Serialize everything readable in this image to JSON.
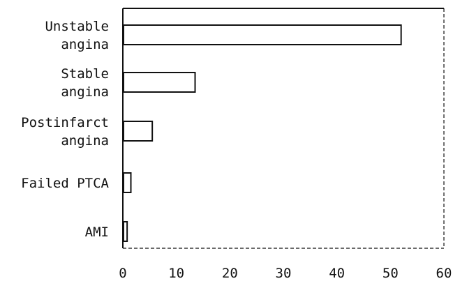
{
  "chart_data": {
    "type": "bar",
    "orientation": "horizontal",
    "categories": [
      [
        "Unstable",
        "angina"
      ],
      [
        "Stable",
        "angina"
      ],
      [
        "Postinfarct",
        "angina"
      ],
      [
        "Failed PTCA"
      ],
      [
        "AMI"
      ]
    ],
    "values": [
      52,
      13.5,
      5.5,
      1.5,
      0.8
    ],
    "xlim": [
      0,
      60
    ],
    "xticks": [
      "0",
      "10",
      "20",
      "30",
      "40",
      "50",
      "60"
    ],
    "title": "",
    "xlabel": "",
    "ylabel": "",
    "grid": false,
    "legend": "none",
    "colors": {
      "bar_fill": "#ffffff",
      "bar_stroke": "#111111",
      "text": "#111111"
    }
  }
}
